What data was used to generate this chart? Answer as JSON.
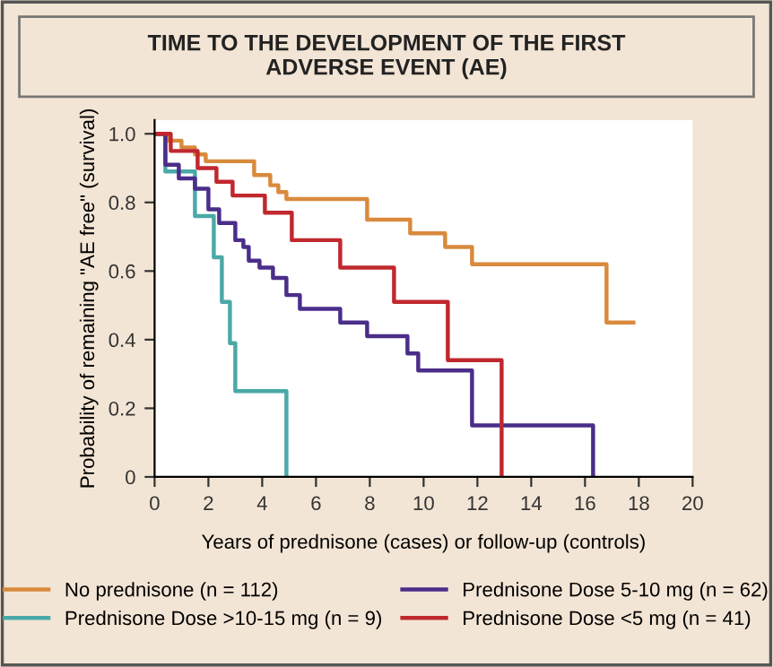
{
  "chart_data": {
    "type": "step",
    "title": "TIME TO THE DEVELOPMENT OF THE FIRST\nADVERSE EVENT (AE)",
    "xlabel": "Years of prednisone (cases) or follow-up (controls)",
    "ylabel": "Probability of remaining \"AE free\" (survival)",
    "series": [
      {
        "name": "No prednisone (n = 112)",
        "color": "#d98a3d",
        "x": [
          0,
          0.5,
          1,
          1.5,
          1.9,
          3.7,
          4.3,
          4.6,
          4.9,
          7.9,
          9.5,
          10.8,
          11.8,
          16.8,
          17.8
        ],
        "values": [
          1,
          0.98,
          0.96,
          0.94,
          0.92,
          0.88,
          0.85,
          0.83,
          0.81,
          0.75,
          0.71,
          0.67,
          0.62,
          0.45,
          0.45
        ]
      },
      {
        "name": "Prednisone Dose >10-15 mg (n = 9)",
        "color": "#4aa9a8",
        "x": [
          0,
          0.4,
          1.5,
          2.2,
          2.5,
          2.8,
          3.0,
          4.9
        ],
        "values": [
          1,
          0.89,
          0.76,
          0.64,
          0.51,
          0.39,
          0.25,
          0
        ]
      },
      {
        "name": "Prednisone Dose 5-10 mg (n = 62)",
        "color": "#4b2d8a",
        "x": [
          0,
          0.4,
          0.9,
          1.5,
          2.0,
          2.4,
          3.0,
          3.3,
          3.5,
          3.9,
          4.4,
          4.9,
          5.4,
          6.9,
          7.9,
          9.4,
          9.8,
          11.8,
          16.3
        ],
        "values": [
          1,
          0.91,
          0.87,
          0.84,
          0.78,
          0.74,
          0.69,
          0.67,
          0.63,
          0.61,
          0.58,
          0.53,
          0.49,
          0.45,
          0.41,
          0.36,
          0.31,
          0.15,
          0
        ]
      },
      {
        "name": "Prednisone Dose <5 mg (n = 41)",
        "color": "#c0282e",
        "x": [
          0,
          0.6,
          1.6,
          2.3,
          2.9,
          4.1,
          5.1,
          6.9,
          8.9,
          10.9,
          12.9
        ],
        "values": [
          1,
          0.95,
          0.9,
          0.86,
          0.82,
          0.77,
          0.69,
          0.61,
          0.51,
          0.34,
          0
        ]
      }
    ],
    "xlim": [
      0,
      20
    ],
    "xticks": [
      0,
      2,
      4,
      6,
      8,
      10,
      12,
      14,
      16,
      18,
      20
    ],
    "ylim": [
      0,
      1.04
    ],
    "yticks": [
      0,
      0.2,
      0.4,
      0.6,
      0.8,
      {
        "value": 1,
        "label": "1.0"
      }
    ],
    "legend": "bottom",
    "grid": false
  }
}
